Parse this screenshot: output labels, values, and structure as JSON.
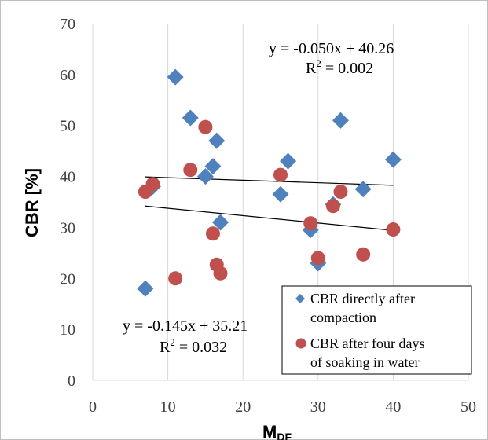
{
  "chart_data": {
    "type": "scatter",
    "xlabel": "M",
    "xlabel_sub": "DF",
    "ylabel": "CBR  [%]",
    "xlim": [
      0,
      50
    ],
    "ylim": [
      0,
      70
    ],
    "xticks": [
      0,
      10,
      20,
      30,
      40,
      50
    ],
    "yticks": [
      0,
      10,
      20,
      30,
      40,
      50,
      60,
      70
    ],
    "grid": "vertical",
    "legend_position": "bottom-right",
    "series": [
      {
        "name": "CBR directly after compaction",
        "legend_lines": [
          "CBR directly after",
          "compaction"
        ],
        "marker": "diamond",
        "color": "#4f81bd",
        "points": [
          [
            7,
            18
          ],
          [
            8,
            38
          ],
          [
            11,
            59.5
          ],
          [
            13,
            51.5
          ],
          [
            15,
            40
          ],
          [
            16,
            42
          ],
          [
            16.5,
            47
          ],
          [
            17,
            31
          ],
          [
            25,
            36.5
          ],
          [
            26,
            43
          ],
          [
            29,
            29.5
          ],
          [
            30,
            23
          ],
          [
            32,
            34.5
          ],
          [
            33,
            51
          ],
          [
            36,
            37.5
          ],
          [
            40,
            43.3
          ]
        ],
        "trendline": {
          "x": [
            7,
            40
          ],
          "slope": -0.05,
          "intercept": 40.26
        }
      },
      {
        "name": "CBR after four days of soaking in water",
        "legend_lines": [
          "CBR after four days",
          "of soaking in water"
        ],
        "marker": "circle",
        "color": "#c0504d",
        "points": [
          [
            7,
            37
          ],
          [
            8,
            38.5
          ],
          [
            11,
            20
          ],
          [
            13,
            41.3
          ],
          [
            15,
            49.7
          ],
          [
            16,
            28.8
          ],
          [
            16.5,
            22.7
          ],
          [
            17,
            21
          ],
          [
            25,
            40.3
          ],
          [
            29,
            30.8
          ],
          [
            30,
            24
          ],
          [
            32,
            34.2
          ],
          [
            33,
            37
          ],
          [
            36,
            24.7
          ],
          [
            40,
            29.6
          ]
        ],
        "trendline": {
          "x": [
            7,
            40
          ],
          "slope": -0.145,
          "intercept": 35.21
        }
      }
    ],
    "annotations": [
      {
        "series": "CBR directly after compaction",
        "equation": "y = -0.050x + 40.26",
        "r2_label": "R",
        "r2_value": " = 0.002"
      },
      {
        "series": "CBR after four days of soaking in water",
        "equation": "y = -0.145x + 35.21",
        "r2_label": "R",
        "r2_value": " = 0.032"
      }
    ]
  }
}
